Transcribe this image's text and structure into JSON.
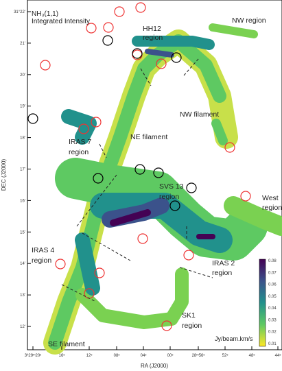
{
  "title": [
    "NH₃(1,1)",
    "Integrated Intensity"
  ],
  "x_axis": {
    "label": "RA (J2000)",
    "ticks": [
      "3ʰ29ᵐ20ˢ",
      "16ˢ",
      "12ˢ",
      "08ˢ",
      "04ˢ",
      "00ˢ",
      "28ᵐ56ˢ",
      "52ˢ",
      "48ˢ",
      "44ˢ"
    ]
  },
  "y_axis": {
    "label": "DEC (J2000)",
    "ticks": [
      "31°22'",
      "21'",
      "20'",
      "19'",
      "18'",
      "17'",
      "16'",
      "15'",
      "14'",
      "13'",
      "12'"
    ]
  },
  "regions": [
    {
      "lines": [
        "NW region"
      ]
    },
    {
      "lines": [
        "HH12",
        "region"
      ]
    },
    {
      "lines": [
        "NW filament"
      ]
    },
    {
      "lines": [
        "IRAS 7",
        "region"
      ]
    },
    {
      "lines": [
        "NE filament"
      ]
    },
    {
      "lines": [
        "SVS 13",
        "region"
      ]
    },
    {
      "lines": [
        "West",
        "region"
      ]
    },
    {
      "lines": [
        "IRAS 4",
        "region"
      ]
    },
    {
      "lines": [
        "IRAS 2",
        "region"
      ]
    },
    {
      "lines": [
        "SK1",
        "region"
      ]
    },
    {
      "lines": [
        "SE filament"
      ]
    }
  ],
  "colorbar": {
    "label": "Jy/beam.km/s",
    "ticks": [
      "0.08",
      "0.07",
      "0.06",
      "0.05",
      "0.04",
      "0.03",
      "0.02",
      "0.01"
    ]
  }
}
